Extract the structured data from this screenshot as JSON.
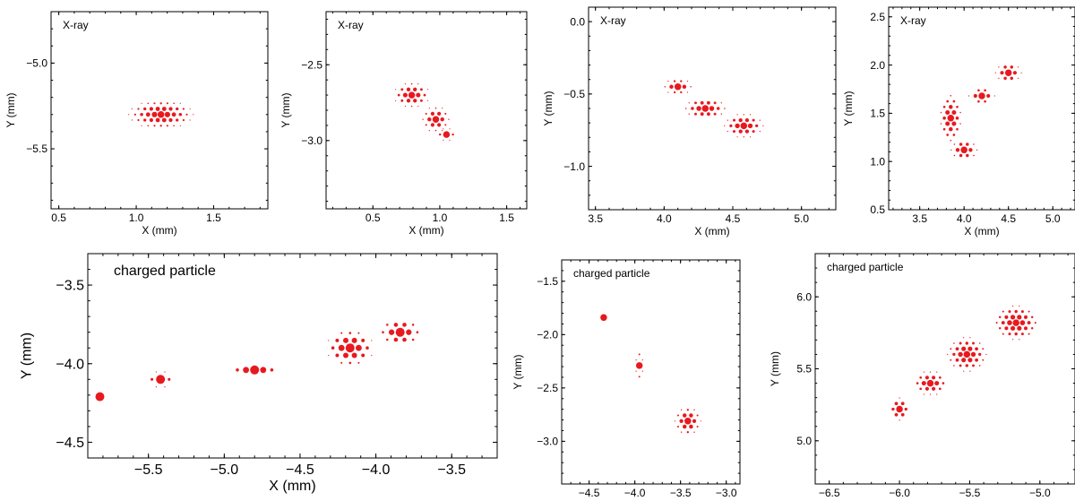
{
  "colors": {
    "hit": "#e8191e",
    "frame": "#000000"
  },
  "chart_data": [
    {
      "type": "scatter",
      "title": "X-ray",
      "xlabel": "X (mm)",
      "ylabel": "Y (mm)",
      "xlim": [
        0.45,
        1.85
      ],
      "ylim": [
        -5.85,
        -4.7
      ],
      "xticks": [
        0.5,
        1.0,
        1.5
      ],
      "yticks": [
        -5.0,
        -5.5
      ],
      "xticklabels": [
        "0.5",
        "1.0",
        "1.5"
      ],
      "yticklabels": [
        "−5.0",
        "−5.5"
      ],
      "clusters": [
        {
          "cx": 1.16,
          "cy": -5.3,
          "rx": 0.2,
          "ry": 0.08
        }
      ]
    },
    {
      "type": "scatter",
      "title": "X-ray",
      "xlabel": "X (mm)",
      "ylabel": "Y (mm)",
      "xlim": [
        0.15,
        1.65
      ],
      "ylim": [
        -3.45,
        -2.15
      ],
      "xticks": [
        0.5,
        1.0,
        1.5
      ],
      "yticks": [
        -2.5,
        -3.0
      ],
      "xticklabels": [
        "0.5",
        "1.0",
        "1.5"
      ],
      "yticklabels": [
        "−2.5",
        "−3.0"
      ],
      "clusters": [
        {
          "cx": 0.79,
          "cy": -2.7,
          "rx": 0.13,
          "ry": 0.08
        },
        {
          "cx": 0.97,
          "cy": -2.86,
          "rx": 0.1,
          "ry": 0.08
        },
        {
          "cx": 1.05,
          "cy": -2.96,
          "rx": 0.06,
          "ry": 0.04
        }
      ]
    },
    {
      "type": "scatter",
      "title": "X-ray",
      "xlabel": "X (mm)",
      "ylabel": "Y (mm)",
      "xlim": [
        3.45,
        5.25
      ],
      "ylim": [
        -1.3,
        0.1
      ],
      "xticks": [
        3.5,
        4.0,
        4.5,
        5.0
      ],
      "yticks": [
        0.0,
        -0.5,
        -1.0
      ],
      "xticklabels": [
        "3.5",
        "4.0",
        "4.5",
        "5.0"
      ],
      "yticklabels": [
        "0.0",
        "−0.5",
        "−1.0"
      ],
      "clusters": [
        {
          "cx": 4.1,
          "cy": -0.45,
          "rx": 0.1,
          "ry": 0.05
        },
        {
          "cx": 4.3,
          "cy": -0.6,
          "rx": 0.15,
          "ry": 0.07
        },
        {
          "cx": 4.58,
          "cy": -0.72,
          "rx": 0.14,
          "ry": 0.08
        }
      ]
    },
    {
      "type": "scatter",
      "title": "X-ray",
      "xlabel": "X (mm)",
      "ylabel": "Y (mm)",
      "xlim": [
        3.15,
        5.25
      ],
      "ylim": [
        0.5,
        2.6
      ],
      "xticks": [
        3.5,
        4.0,
        4.5,
        5.0
      ],
      "yticks": [
        0.5,
        1.0,
        1.5,
        2.0,
        2.5
      ],
      "xticklabels": [
        "3.5",
        "4.0",
        "4.5",
        "5.0"
      ],
      "yticklabels": [
        "0.5",
        "1.0",
        "1.5",
        "2.0",
        "2.5"
      ],
      "clusters": [
        {
          "cx": 3.85,
          "cy": 1.45,
          "rx": 0.12,
          "ry": 0.25
        },
        {
          "cx": 4.0,
          "cy": 1.12,
          "rx": 0.15,
          "ry": 0.1
        },
        {
          "cx": 4.2,
          "cy": 1.68,
          "rx": 0.14,
          "ry": 0.08
        },
        {
          "cx": 4.5,
          "cy": 1.92,
          "rx": 0.14,
          "ry": 0.1
        }
      ]
    },
    {
      "type": "scatter",
      "title": "charged particle",
      "xlabel": "X (mm)",
      "ylabel": "Y (mm)",
      "xlim": [
        -5.9,
        -3.2
      ],
      "ylim": [
        -4.6,
        -3.3
      ],
      "xticks": [
        -5.5,
        -5.0,
        -4.5,
        -4.0,
        -3.5
      ],
      "yticks": [
        -3.5,
        -4.0,
        -4.5
      ],
      "xticklabels": [
        "−5.5",
        "−5.0",
        "−4.5",
        "−4.0",
        "−3.5"
      ],
      "yticklabels": [
        "−3.5",
        "−4.0",
        "−4.5"
      ],
      "clusters": [
        {
          "cx": -5.82,
          "cy": -4.21,
          "rx": 0.03,
          "ry": 0.05
        },
        {
          "cx": -5.42,
          "cy": -4.1,
          "rx": 0.07,
          "ry": 0.05
        },
        {
          "cx": -4.8,
          "cy": -4.04,
          "rx": 0.15,
          "ry": 0.045
        },
        {
          "cx": -4.17,
          "cy": -3.9,
          "rx": 0.15,
          "ry": 0.11
        },
        {
          "cx": -3.84,
          "cy": -3.8,
          "rx": 0.13,
          "ry": 0.08
        }
      ]
    },
    {
      "type": "scatter",
      "title": "charged particle",
      "xlabel": "X (mm)",
      "ylabel": "Y (mm)",
      "xlim": [
        -4.8,
        -2.85
      ],
      "ylim": [
        -3.4,
        -1.3
      ],
      "xticks": [
        -4.5,
        -4.0,
        -3.5,
        -3.0
      ],
      "yticks": [
        -1.5,
        -2.0,
        -2.5,
        -3.0
      ],
      "xticklabels": [
        "−4.5",
        "−4.0",
        "−3.5",
        "−3.0"
      ],
      "yticklabels": [
        "−1.5",
        "−2.0",
        "−2.5",
        "−3.0"
      ],
      "clusters": [
        {
          "cx": -4.34,
          "cy": -1.84,
          "rx": 0.05,
          "ry": 0.05
        },
        {
          "cx": -3.95,
          "cy": -2.29,
          "rx": 0.04,
          "ry": 0.12
        },
        {
          "cx": -3.42,
          "cy": -2.81,
          "rx": 0.14,
          "ry": 0.13
        }
      ]
    },
    {
      "type": "scatter",
      "title": "charged particle",
      "xlabel": "X (mm)",
      "ylabel": "Y (mm)",
      "xlim": [
        -6.6,
        -4.75
      ],
      "ylim": [
        4.7,
        6.3
      ],
      "xticks": [
        -6.5,
        -6.0,
        -5.5,
        -5.0
      ],
      "yticks": [
        5.0,
        5.5,
        6.0
      ],
      "xticklabels": [
        "−6.5",
        "−6.0",
        "−5.5",
        "−5.0"
      ],
      "yticklabels": [
        "5.0",
        "5.5",
        "6.0"
      ],
      "clusters": [
        {
          "cx": -6.0,
          "cy": 5.22,
          "rx": 0.07,
          "ry": 0.08
        },
        {
          "cx": -5.78,
          "cy": 5.4,
          "rx": 0.12,
          "ry": 0.08
        },
        {
          "cx": -5.52,
          "cy": 5.6,
          "rx": 0.14,
          "ry": 0.12
        },
        {
          "cx": -5.17,
          "cy": 5.82,
          "rx": 0.16,
          "ry": 0.12
        }
      ]
    }
  ]
}
